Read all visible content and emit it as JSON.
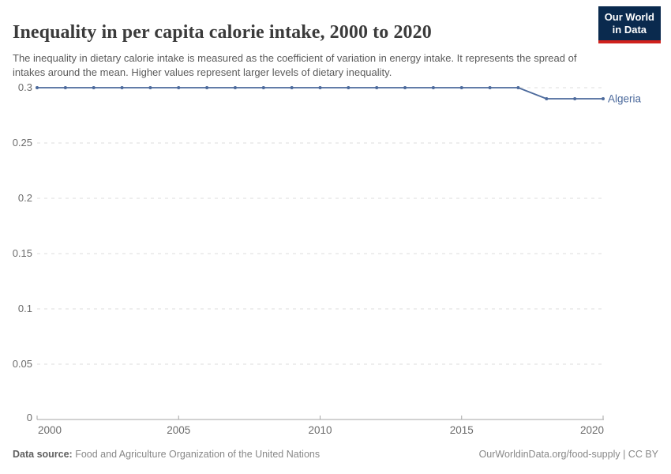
{
  "header": {
    "title": "Inequality in per capita calorie intake, 2000 to 2020",
    "subtitle": "The inequality in dietary calorie intake is measured as the coefficient of variation in energy intake. It represents the spread of intakes around the mean. Higher values represent larger levels of dietary inequality."
  },
  "logo": {
    "line1": "Our World",
    "line2": "in Data",
    "bg_color": "#0a2a4e",
    "accent_color": "#d0211c"
  },
  "chart_data": {
    "type": "line",
    "title": "Inequality in per capita calorie intake, 2000 to 2020",
    "x": [
      2000,
      2001,
      2002,
      2003,
      2004,
      2005,
      2006,
      2007,
      2008,
      2009,
      2010,
      2011,
      2012,
      2013,
      2014,
      2015,
      2016,
      2017,
      2018,
      2019,
      2020
    ],
    "series": [
      {
        "name": "Algeria",
        "color": "#4c6a9c",
        "values": [
          0.3,
          0.3,
          0.3,
          0.3,
          0.3,
          0.3,
          0.3,
          0.3,
          0.3,
          0.3,
          0.3,
          0.3,
          0.3,
          0.3,
          0.3,
          0.3,
          0.3,
          0.3,
          0.29,
          0.29,
          0.29
        ]
      }
    ],
    "xlabel": "",
    "ylabel": "",
    "ylim": [
      0,
      0.3
    ],
    "yticks": [
      0,
      0.05,
      0.1,
      0.15,
      0.2,
      0.25,
      0.3
    ],
    "ytick_labels": [
      "0",
      "0.05",
      "0.1",
      "0.15",
      "0.2",
      "0.25",
      "0.3"
    ],
    "xticks": [
      2000,
      2005,
      2010,
      2015,
      2020
    ],
    "grid": "horizontal-dashed",
    "grid_color": "#dedede",
    "axis_color": "#a5a5a5",
    "tick_label_color": "#6c6c6c",
    "legend": "line-end-label"
  },
  "footer": {
    "source_label": "Data source:",
    "source_text": " Food and Agriculture Organization of the United Nations",
    "credit": "OurWorldinData.org/food-supply | CC BY"
  }
}
